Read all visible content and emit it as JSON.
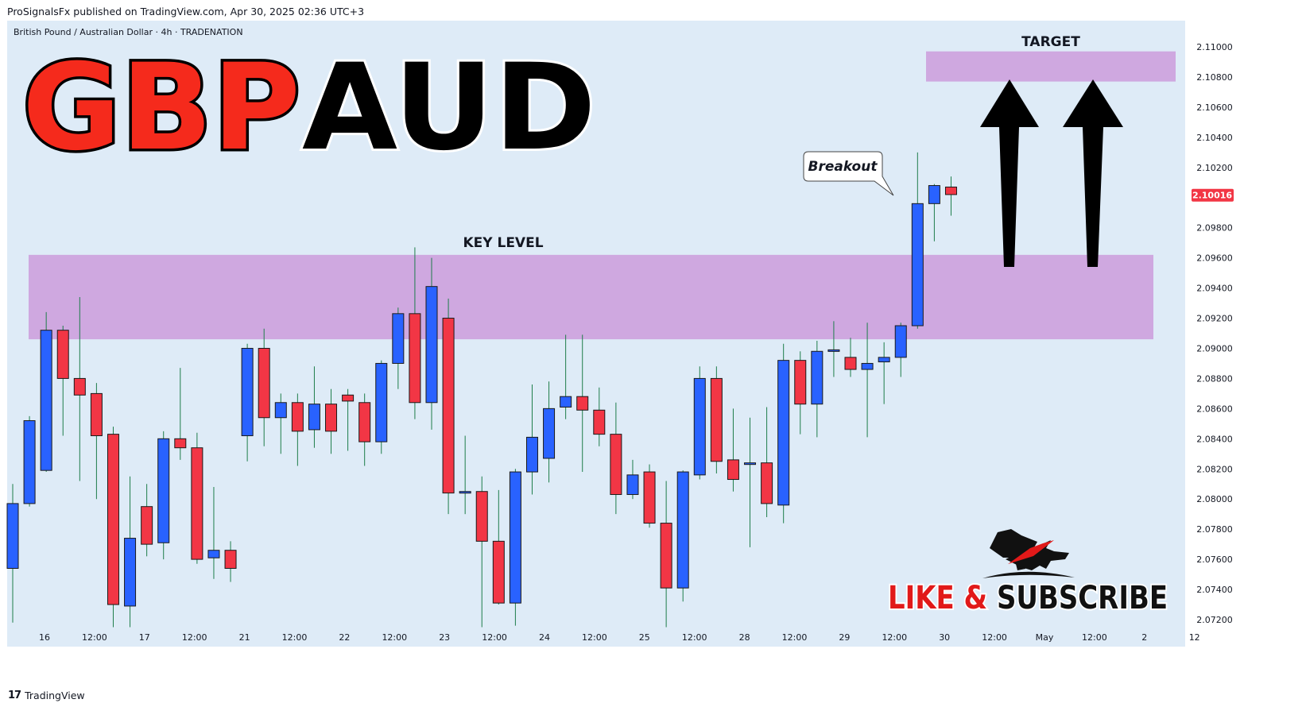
{
  "header": {
    "published": "ProSignalsFx published on TradingView.com, Apr 30, 2025 02:36 UTC+3"
  },
  "footer": {
    "brand": "TradingView"
  },
  "colors": {
    "background": "#deebf7",
    "bull": "#2962ff",
    "bear": "#f23645",
    "zone": "#cfa8e0",
    "price_badge": "#f23645"
  },
  "chart_data": {
    "type": "candlestick",
    "symbol": "British Pound / Australian Dollar · 4h · TRADENATION",
    "title_left": "GBP",
    "title_right": "AUD",
    "ylim": [
      2.071,
      2.1125
    ],
    "y_ticks": [
      "2.11000",
      "2.10800",
      "2.10600",
      "2.10400",
      "2.10200",
      "2.09800",
      "2.09600",
      "2.09400",
      "2.09200",
      "2.09000",
      "2.08800",
      "2.08600",
      "2.08400",
      "2.08200",
      "2.08000",
      "2.07800",
      "2.07600",
      "2.07400",
      "2.07200"
    ],
    "last_price": "2.10016",
    "x_ticks": [
      "16",
      "12:00",
      "17",
      "12:00",
      "21",
      "12:00",
      "22",
      "12:00",
      "23",
      "12:00",
      "24",
      "12:00",
      "25",
      "12:00",
      "28",
      "12:00",
      "29",
      "12:00",
      "30",
      "12:00",
      "May",
      "12:00",
      "2",
      "12"
    ],
    "annotations": {
      "key_level": "KEY LEVEL",
      "key_zone": [
        2.0906,
        2.0962
      ],
      "target": "TARGET",
      "target_zone": [
        2.1077,
        2.1097
      ],
      "breakout": "Breakout",
      "cta": "LIKE & SUBSCRIBE"
    },
    "candles": [
      {
        "o": 2.0754,
        "h": 2.081,
        "l": 2.0718,
        "c": 2.0797
      },
      {
        "o": 2.0797,
        "h": 2.0855,
        "l": 2.0795,
        "c": 2.0852
      },
      {
        "o": 2.0819,
        "h": 2.0924,
        "l": 2.0818,
        "c": 2.0912
      },
      {
        "o": 2.0912,
        "h": 2.0915,
        "l": 2.0842,
        "c": 2.088
      },
      {
        "o": 2.088,
        "h": 2.0934,
        "l": 2.0812,
        "c": 2.0869
      },
      {
        "o": 2.087,
        "h": 2.0877,
        "l": 2.08,
        "c": 2.0842
      },
      {
        "o": 2.0843,
        "h": 2.0848,
        "l": 2.0715,
        "c": 2.073
      },
      {
        "o": 2.0729,
        "h": 2.0815,
        "l": 2.0715,
        "c": 2.0774
      },
      {
        "o": 2.0795,
        "h": 2.081,
        "l": 2.0762,
        "c": 2.077
      },
      {
        "o": 2.0771,
        "h": 2.0845,
        "l": 2.076,
        "c": 2.084
      },
      {
        "o": 2.084,
        "h": 2.0887,
        "l": 2.0826,
        "c": 2.0834
      },
      {
        "o": 2.0834,
        "h": 2.0844,
        "l": 2.0757,
        "c": 2.076
      },
      {
        "o": 2.0761,
        "h": 2.0808,
        "l": 2.0747,
        "c": 2.0766
      },
      {
        "o": 2.0766,
        "h": 2.0772,
        "l": 2.0745,
        "c": 2.0754
      },
      {
        "o": 2.0842,
        "h": 2.0903,
        "l": 2.0825,
        "c": 2.09
      },
      {
        "o": 2.09,
        "h": 2.0913,
        "l": 2.0835,
        "c": 2.0854
      },
      {
        "o": 2.0854,
        "h": 2.087,
        "l": 2.083,
        "c": 2.0864
      },
      {
        "o": 2.0864,
        "h": 2.087,
        "l": 2.0822,
        "c": 2.0845
      },
      {
        "o": 2.0846,
        "h": 2.0888,
        "l": 2.0834,
        "c": 2.0863
      },
      {
        "o": 2.0863,
        "h": 2.0873,
        "l": 2.083,
        "c": 2.0845
      },
      {
        "o": 2.0869,
        "h": 2.0873,
        "l": 2.0832,
        "c": 2.0865
      },
      {
        "o": 2.0864,
        "h": 2.087,
        "l": 2.0822,
        "c": 2.0838
      },
      {
        "o": 2.0838,
        "h": 2.0892,
        "l": 2.083,
        "c": 2.089
      },
      {
        "o": 2.089,
        "h": 2.0927,
        "l": 2.0873,
        "c": 2.0923
      },
      {
        "o": 2.0923,
        "h": 2.0967,
        "l": 2.0853,
        "c": 2.0864
      },
      {
        "o": 2.0864,
        "h": 2.096,
        "l": 2.0846,
        "c": 2.0941
      },
      {
        "o": 2.092,
        "h": 2.0933,
        "l": 2.079,
        "c": 2.0804
      },
      {
        "o": 2.0804,
        "h": 2.0842,
        "l": 2.079,
        "c": 2.0805
      },
      {
        "o": 2.0805,
        "h": 2.0815,
        "l": 2.0715,
        "c": 2.0772
      },
      {
        "o": 2.0772,
        "h": 2.0806,
        "l": 2.073,
        "c": 2.0731
      },
      {
        "o": 2.0731,
        "h": 2.082,
        "l": 2.0716,
        "c": 2.0818
      },
      {
        "o": 2.0818,
        "h": 2.0876,
        "l": 2.0803,
        "c": 2.0841
      },
      {
        "o": 2.0827,
        "h": 2.0878,
        "l": 2.0811,
        "c": 2.086
      },
      {
        "o": 2.0861,
        "h": 2.0909,
        "l": 2.0853,
        "c": 2.0868
      },
      {
        "o": 2.0868,
        "h": 2.0909,
        "l": 2.0818,
        "c": 2.0859
      },
      {
        "o": 2.0859,
        "h": 2.0874,
        "l": 2.0835,
        "c": 2.0843
      },
      {
        "o": 2.0843,
        "h": 2.0864,
        "l": 2.079,
        "c": 2.0803
      },
      {
        "o": 2.0803,
        "h": 2.0826,
        "l": 2.08,
        "c": 2.0816
      },
      {
        "o": 2.0818,
        "h": 2.0823,
        "l": 2.0781,
        "c": 2.0784
      },
      {
        "o": 2.0784,
        "h": 2.0812,
        "l": 2.0715,
        "c": 2.0741
      },
      {
        "o": 2.0741,
        "h": 2.0819,
        "l": 2.0732,
        "c": 2.0818
      },
      {
        "o": 2.0816,
        "h": 2.0888,
        "l": 2.0813,
        "c": 2.088
      },
      {
        "o": 2.088,
        "h": 2.0888,
        "l": 2.0817,
        "c": 2.0825
      },
      {
        "o": 2.0826,
        "h": 2.086,
        "l": 2.0805,
        "c": 2.0813
      },
      {
        "o": 2.0824,
        "h": 2.0854,
        "l": 2.0768,
        "c": 2.0824
      },
      {
        "o": 2.0824,
        "h": 2.0861,
        "l": 2.0788,
        "c": 2.0797
      },
      {
        "o": 2.0796,
        "h": 2.0903,
        "l": 2.0784,
        "c": 2.0892
      },
      {
        "o": 2.0892,
        "h": 2.0898,
        "l": 2.0843,
        "c": 2.0863
      },
      {
        "o": 2.0863,
        "h": 2.0905,
        "l": 2.0841,
        "c": 2.0898
      },
      {
        "o": 2.0898,
        "h": 2.0918,
        "l": 2.0881,
        "c": 2.0899
      },
      {
        "o": 2.0894,
        "h": 2.0907,
        "l": 2.0881,
        "c": 2.0886
      },
      {
        "o": 2.0886,
        "h": 2.0917,
        "l": 2.0841,
        "c": 2.089
      },
      {
        "o": 2.0891,
        "h": 2.0904,
        "l": 2.0863,
        "c": 2.0894
      },
      {
        "o": 2.0894,
        "h": 2.0917,
        "l": 2.0881,
        "c": 2.0915
      },
      {
        "o": 2.0915,
        "h": 2.103,
        "l": 2.0913,
        "c": 2.0996
      },
      {
        "o": 2.0996,
        "h": 2.1009,
        "l": 2.0971,
        "c": 2.1008
      },
      {
        "o": 2.1007,
        "h": 2.1014,
        "l": 2.0988,
        "c": 2.1002
      }
    ]
  }
}
